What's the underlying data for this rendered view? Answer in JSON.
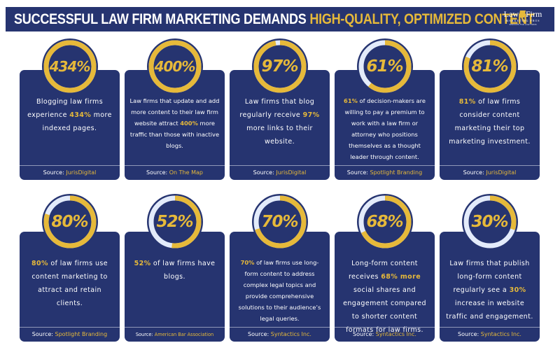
{
  "header": {
    "title_white": "SUCCESSFUL LAW FIRM MARKETING DEMANDS",
    "title_highlight": "HIGH-QUALITY, OPTIMIZED CONTENT",
    "logo": {
      "left": "Law",
      "right": "Firm",
      "sub": "MARKETING PROS",
      "tagline": "SERVICES FOR LAW FIRMS"
    }
  },
  "colors": {
    "navy": "#263470",
    "gold": "#e6b93a",
    "ring_track": "#e3ebfa",
    "divider": "#8f97b8",
    "background": "#ffffff"
  },
  "source_label": "Source:",
  "cards": [
    {
      "value": 434,
      "stat": "434%",
      "text_before": "Blogging law firms experience ",
      "text_hl": "434%",
      "text_after": " more indexed pages.",
      "source": "JurisDigital"
    },
    {
      "value": 400,
      "stat": "400%",
      "text_before": "Law firms that update and add more content to their law firm website attract ",
      "text_hl": "400%",
      "text_after": " more traffic than those with inactive blogs.",
      "source": "On The Map"
    },
    {
      "value": 97,
      "stat": "97%",
      "text_before": "Law firms that blog regularly receive ",
      "text_hl": "97%",
      "text_after": " more links to their website.",
      "source": "JurisDigital"
    },
    {
      "value": 61,
      "stat": "61%",
      "text_before": "",
      "text_hl": "61%",
      "text_after": " of decision-makers are willing to pay a premium to work with a law firm or attorney who positions themselves as a thought leader through content.",
      "source": "Spotlight Branding"
    },
    {
      "value": 81,
      "stat": "81%",
      "text_before": "",
      "text_hl": "81%",
      "text_after": " of law firms consider content marketing their top marketing investment.",
      "source": "JurisDigital"
    },
    {
      "value": 80,
      "stat": "80%",
      "text_before": "",
      "text_hl": "80%",
      "text_after": " of law firms use content marketing to attract and retain clients.",
      "source": "Spotlight Branding"
    },
    {
      "value": 52,
      "stat": "52%",
      "text_before": "",
      "text_hl": "52%",
      "text_after": " of law firms have blogs.",
      "source": "American Bar Association"
    },
    {
      "value": 70,
      "stat": "70%",
      "text_before": "",
      "text_hl": "70%",
      "text_after": " of law firms use long-form content to address complex legal topics and provide comprehensive solutions to their audience’s legal queries.",
      "source": "Syntactics Inc."
    },
    {
      "value": 68,
      "stat": "68%",
      "text_before": "Long-form content receives ",
      "text_hl": "68% more",
      "text_after": " social shares and engagement compared to shorter content formats for law firms.",
      "source": "Syntactics Inc."
    },
    {
      "value": 30,
      "stat": "30%",
      "text_before": "Law firms that publish long-form content regularly see  a ",
      "text_hl": "30%",
      "text_after": " increase in website traffic and engagement.",
      "source": "Syntactics Inc."
    }
  ],
  "chart_data": {
    "type": "table",
    "title": "SUCCESSFUL LAW FIRM MARKETING DEMANDS HIGH-QUALITY, OPTIMIZED CONTENT",
    "columns": [
      "stat",
      "description",
      "source"
    ],
    "rows": [
      [
        "434%",
        "Blogging law firms experience 434% more indexed pages.",
        "JurisDigital"
      ],
      [
        "400%",
        "Law firms that update and add more content to their law firm website attract 400% more traffic than those with inactive blogs.",
        "On The Map"
      ],
      [
        "97%",
        "Law firms that blog regularly receive 97% more links to their website.",
        "JurisDigital"
      ],
      [
        "61%",
        "61% of decision-makers are willing to pay a premium to work with a law firm or attorney who positions themselves as a thought leader through content.",
        "Spotlight Branding"
      ],
      [
        "81%",
        "81% of law firms consider content marketing their top marketing investment.",
        "JurisDigital"
      ],
      [
        "80%",
        "80% of law firms use content marketing to attract and retain clients.",
        "Spotlight Branding"
      ],
      [
        "52%",
        "52% of law firms have blogs.",
        "American Bar Association"
      ],
      [
        "70%",
        "70% of law firms use long-form content to address complex legal topics and provide comprehensive solutions to their audience’s legal queries.",
        "Syntactics Inc."
      ],
      [
        "68%",
        "Long-form content receives 68% more social shares and engagement compared to shorter content formats for law firms.",
        "Syntactics Inc."
      ],
      [
        "30%",
        "Law firms that publish long-form content regularly see a 30% increase in website traffic and engagement.",
        "Syntactics Inc."
      ]
    ]
  }
}
